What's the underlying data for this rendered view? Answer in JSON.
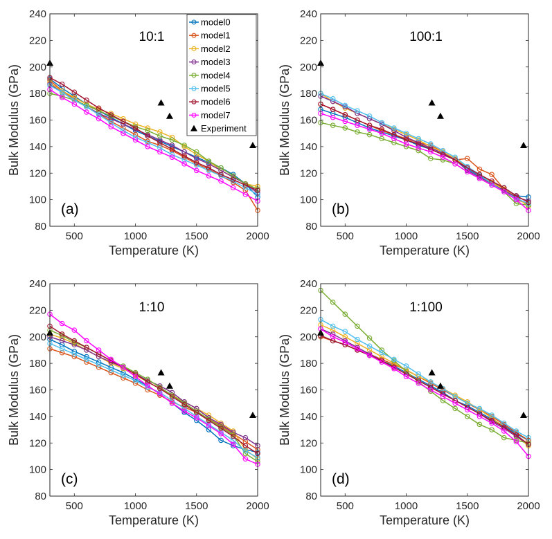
{
  "chart_data": [
    {
      "type": "line",
      "panel_tag": "(a)",
      "ratio_label": "10:1",
      "xlabel": "Temperature (K)",
      "ylabel": "Bulk Modulus (GPa)",
      "xlim": [
        300,
        2000
      ],
      "ylim": [
        80,
        240
      ],
      "xticks": [
        500,
        1000,
        1500,
        2000
      ],
      "yticks": [
        80,
        100,
        120,
        140,
        160,
        180,
        200,
        220,
        240
      ],
      "x": [
        300,
        400,
        500,
        600,
        700,
        800,
        900,
        1000,
        1100,
        1200,
        1300,
        1400,
        1500,
        1600,
        1700,
        1800,
        1900,
        2000
      ],
      "series": [
        {
          "name": "model0",
          "color": "#0072BD",
          "values": [
            191,
            184,
            178,
            172,
            167,
            162,
            157,
            152,
            148,
            144,
            140,
            136,
            132,
            128,
            124,
            119,
            112,
            102
          ]
        },
        {
          "name": "model1",
          "color": "#D95319",
          "values": [
            190,
            182,
            176,
            170,
            165,
            159,
            154,
            149,
            144,
            141,
            137,
            132,
            127,
            123,
            118,
            113,
            107,
            92
          ]
        },
        {
          "name": "model2",
          "color": "#EDB120",
          "values": [
            188,
            182,
            177,
            172,
            168,
            165,
            161,
            157,
            154,
            151,
            147,
            140,
            134,
            129,
            122,
            117,
            112,
            110
          ]
        },
        {
          "name": "model3",
          "color": "#7E2F8E",
          "values": [
            187,
            181,
            175,
            170,
            165,
            161,
            157,
            153,
            149,
            145,
            141,
            136,
            131,
            127,
            122,
            117,
            112,
            105
          ]
        },
        {
          "name": "model4",
          "color": "#77AC30",
          "values": [
            180,
            178,
            175,
            171,
            167,
            163,
            159,
            155,
            152,
            148,
            145,
            141,
            136,
            129,
            124,
            118,
            112,
            108
          ]
        },
        {
          "name": "model5",
          "color": "#4DBEEE",
          "values": [
            186,
            181,
            175,
            170,
            164,
            158,
            152,
            147,
            143,
            139,
            134,
            130,
            126,
            122,
            118,
            114,
            109,
            104
          ]
        },
        {
          "name": "model6",
          "color": "#A2142F",
          "values": [
            192,
            187,
            181,
            175,
            169,
            164,
            159,
            154,
            148,
            143,
            138,
            133,
            128,
            124,
            119,
            115,
            111,
            107
          ]
        },
        {
          "name": "model7",
          "color": "#FF00FF",
          "values": [
            183,
            177,
            172,
            166,
            161,
            155,
            150,
            145,
            140,
            136,
            132,
            127,
            122,
            118,
            114,
            109,
            104,
            99
          ]
        }
      ],
      "experiment": {
        "name": "Experiment",
        "x": [
          300,
          1210,
          1280,
          1960
        ],
        "y": [
          203,
          173,
          163,
          141
        ]
      }
    },
    {
      "type": "line",
      "panel_tag": "(b)",
      "ratio_label": "100:1",
      "xlabel": "Temperature (K)",
      "ylabel": "Bulk Modulus (GPa)",
      "xlim": [
        300,
        2000
      ],
      "ylim": [
        80,
        240
      ],
      "xticks": [
        500,
        1000,
        1500,
        2000
      ],
      "yticks": [
        80,
        100,
        120,
        140,
        160,
        180,
        200,
        220,
        240
      ],
      "x": [
        300,
        400,
        500,
        600,
        700,
        800,
        900,
        1000,
        1100,
        1200,
        1300,
        1400,
        1500,
        1600,
        1700,
        1800,
        1900,
        2000
      ],
      "series": [
        {
          "name": "model0",
          "color": "#0072BD",
          "values": [
            168,
            165,
            162,
            158,
            154,
            151,
            148,
            145,
            141,
            138,
            134,
            130,
            123,
            118,
            113,
            109,
            103,
            102
          ]
        },
        {
          "name": "model1",
          "color": "#D95319",
          "values": [
            172,
            168,
            164,
            160,
            156,
            152,
            149,
            146,
            143,
            141,
            136,
            130,
            131,
            123,
            119,
            108,
            100,
            97
          ]
        },
        {
          "name": "model2",
          "color": "#EDB120",
          "values": [
            180,
            174,
            169,
            165,
            161,
            157,
            153,
            149,
            145,
            140,
            136,
            131,
            124,
            119,
            113,
            108,
            102,
            95
          ]
        },
        {
          "name": "model3",
          "color": "#7E2F8E",
          "values": [
            178,
            174,
            170,
            165,
            161,
            157,
            152,
            147,
            143,
            139,
            135,
            130,
            122,
            117,
            112,
            107,
            102,
            99
          ]
        },
        {
          "name": "model4",
          "color": "#77AC30",
          "values": [
            158,
            156,
            154,
            151,
            149,
            146,
            143,
            140,
            137,
            131,
            130,
            127,
            121,
            116,
            111,
            106,
            97,
            96
          ]
        },
        {
          "name": "model5",
          "color": "#4DBEEE",
          "values": [
            180,
            176,
            171,
            167,
            163,
            158,
            154,
            150,
            146,
            142,
            137,
            132,
            125,
            119,
            112,
            106,
            101,
            97
          ]
        },
        {
          "name": "model6",
          "color": "#A2142F",
          "values": [
            172,
            168,
            164,
            160,
            156,
            153,
            149,
            145,
            142,
            138,
            134,
            130,
            124,
            119,
            114,
            109,
            103,
            98
          ]
        },
        {
          "name": "model7",
          "color": "#FF00FF",
          "values": [
            165,
            162,
            159,
            156,
            153,
            150,
            146,
            142,
            139,
            136,
            132,
            127,
            121,
            116,
            111,
            106,
            100,
            92
          ]
        }
      ],
      "experiment": {
        "name": "Experiment",
        "x": [
          300,
          1210,
          1280,
          1960
        ],
        "y": [
          203,
          173,
          163,
          141
        ]
      }
    },
    {
      "type": "line",
      "panel_tag": "(c)",
      "ratio_label": "1:10",
      "xlabel": "Temperature (K)",
      "ylabel": "Bulk Modulus (GPa)",
      "xlim": [
        300,
        2000
      ],
      "ylim": [
        80,
        240
      ],
      "xticks": [
        500,
        1000,
        1500,
        2000
      ],
      "yticks": [
        80,
        100,
        120,
        140,
        160,
        180,
        200,
        220,
        240
      ],
      "x": [
        300,
        400,
        500,
        600,
        700,
        800,
        900,
        1000,
        1100,
        1200,
        1300,
        1400,
        1500,
        1600,
        1700,
        1800,
        1900,
        2000
      ],
      "series": [
        {
          "name": "model0",
          "color": "#0072BD",
          "values": [
            198,
            194,
            189,
            185,
            181,
            177,
            173,
            168,
            163,
            157,
            150,
            143,
            137,
            130,
            122,
            118,
            115,
            113
          ]
        },
        {
          "name": "model1",
          "color": "#D95319",
          "values": [
            191,
            188,
            185,
            181,
            177,
            173,
            169,
            165,
            160,
            156,
            151,
            147,
            143,
            138,
            133,
            127,
            121,
            115
          ]
        },
        {
          "name": "model2",
          "color": "#EDB120",
          "values": [
            202,
            199,
            195,
            190,
            185,
            180,
            176,
            171,
            166,
            161,
            156,
            151,
            146,
            141,
            135,
            129,
            115,
            108
          ]
        },
        {
          "name": "model3",
          "color": "#7E2F8E",
          "values": [
            200,
            197,
            194,
            190,
            185,
            181,
            177,
            172,
            167,
            163,
            158,
            151,
            146,
            139,
            134,
            128,
            124,
            118
          ]
        },
        {
          "name": "model4",
          "color": "#77AC30",
          "values": [
            205,
            201,
            196,
            192,
            187,
            182,
            178,
            173,
            168,
            162,
            156,
            150,
            144,
            138,
            132,
            126,
            112,
            106
          ]
        },
        {
          "name": "model5",
          "color": "#4DBEEE",
          "values": [
            195,
            191,
            187,
            183,
            179,
            175,
            171,
            167,
            162,
            158,
            152,
            146,
            140,
            134,
            128,
            122,
            114,
            109
          ]
        },
        {
          "name": "model6",
          "color": "#A2142F",
          "values": [
            208,
            202,
            197,
            192,
            187,
            182,
            177,
            172,
            166,
            161,
            155,
            149,
            143,
            137,
            131,
            125,
            118,
            112
          ]
        },
        {
          "name": "model7",
          "color": "#FF00FF",
          "values": [
            217,
            210,
            205,
            197,
            190,
            183,
            177,
            170,
            163,
            157,
            150,
            144,
            139,
            133,
            127,
            119,
            108,
            104
          ]
        }
      ],
      "experiment": {
        "name": "Experiment",
        "x": [
          300,
          1210,
          1280,
          1960
        ],
        "y": [
          203,
          173,
          163,
          141
        ]
      }
    },
    {
      "type": "line",
      "panel_tag": "(d)",
      "ratio_label": "1:100",
      "xlabel": "Temperature (K)",
      "ylabel": "Bulk Modulus (GPa)",
      "xlim": [
        300,
        2000
      ],
      "ylim": [
        80,
        240
      ],
      "xticks": [
        500,
        1000,
        1500,
        2000
      ],
      "yticks": [
        80,
        100,
        120,
        140,
        160,
        180,
        200,
        220,
        240
      ],
      "x": [
        300,
        400,
        500,
        600,
        700,
        800,
        900,
        1000,
        1100,
        1200,
        1300,
        1400,
        1500,
        1600,
        1700,
        1800,
        1900,
        2000
      ],
      "series": [
        {
          "name": "model0",
          "color": "#0072BD",
          "values": [
            201,
            197,
            194,
            190,
            186,
            182,
            178,
            173,
            168,
            163,
            158,
            152,
            148,
            143,
            138,
            133,
            127,
            122
          ]
        },
        {
          "name": "model1",
          "color": "#D95319",
          "values": [
            200,
            197,
            194,
            190,
            187,
            183,
            179,
            175,
            170,
            165,
            160,
            155,
            150,
            145,
            140,
            134,
            128,
            122
          ]
        },
        {
          "name": "model2",
          "color": "#EDB120",
          "values": [
            209,
            205,
            200,
            195,
            190,
            185,
            180,
            175,
            170,
            166,
            161,
            156,
            151,
            145,
            139,
            132,
            125,
            118
          ]
        },
        {
          "name": "model3",
          "color": "#7E2F8E",
          "values": [
            206,
            202,
            197,
            192,
            187,
            182,
            177,
            172,
            167,
            162,
            157,
            152,
            147,
            142,
            136,
            131,
            125,
            119
          ]
        },
        {
          "name": "model4",
          "color": "#77AC30",
          "values": [
            235,
            226,
            217,
            208,
            199,
            190,
            182,
            174,
            166,
            159,
            152,
            146,
            140,
            134,
            130,
            124,
            122,
            120
          ]
        },
        {
          "name": "model5",
          "color": "#4DBEEE",
          "values": [
            213,
            208,
            204,
            198,
            193,
            188,
            183,
            178,
            172,
            166,
            161,
            155,
            150,
            146,
            141,
            135,
            129,
            124
          ]
        },
        {
          "name": "model6",
          "color": "#A2142F",
          "values": [
            201,
            197,
            194,
            190,
            186,
            182,
            177,
            172,
            167,
            162,
            157,
            152,
            147,
            142,
            137,
            132,
            126,
            119
          ]
        },
        {
          "name": "model7",
          "color": "#FF00FF",
          "values": [
            206,
            200,
            196,
            191,
            186,
            181,
            176,
            170,
            165,
            160,
            155,
            150,
            145,
            140,
            135,
            129,
            121,
            110
          ]
        }
      ],
      "experiment": {
        "name": "Experiment",
        "x": [
          300,
          1210,
          1280,
          1960
        ],
        "y": [
          203,
          173,
          163,
          141
        ]
      }
    }
  ],
  "legend": {
    "entries": [
      "model0",
      "model1",
      "model2",
      "model3",
      "model4",
      "model5",
      "model6",
      "model7",
      "Experiment"
    ],
    "colors": [
      "#0072BD",
      "#D95319",
      "#EDB120",
      "#7E2F8E",
      "#77AC30",
      "#4DBEEE",
      "#A2142F",
      "#FF00FF",
      "#000000"
    ],
    "placement": "top-right of panel (a)"
  }
}
